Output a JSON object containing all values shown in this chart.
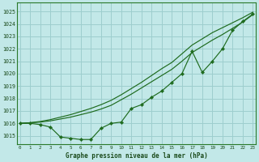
{
  "title": "Graphe pression niveau de la mer (hPa)",
  "bg_color": "#c2e8e8",
  "grid_color": "#9dcece",
  "line_color": "#1e6b1e",
  "xlim": [
    -0.3,
    23.3
  ],
  "ylim": [
    1014.3,
    1025.7
  ],
  "yticks": [
    1015,
    1016,
    1017,
    1018,
    1019,
    1020,
    1021,
    1022,
    1023,
    1024,
    1025
  ],
  "xticks": [
    0,
    1,
    2,
    3,
    4,
    5,
    6,
    7,
    8,
    9,
    10,
    11,
    12,
    13,
    14,
    15,
    16,
    17,
    18,
    19,
    20,
    21,
    22,
    23
  ],
  "series1_x": [
    0,
    1,
    2,
    3,
    4,
    5,
    6,
    7,
    8,
    9,
    10,
    11,
    12,
    13,
    14,
    15,
    16,
    17,
    18,
    19,
    20,
    21,
    22,
    23
  ],
  "series1_y": [
    1016.0,
    1016.0,
    1015.9,
    1015.7,
    1014.9,
    1014.8,
    1014.7,
    1014.7,
    1015.6,
    1016.0,
    1016.1,
    1017.2,
    1017.5,
    1018.1,
    1018.6,
    1019.3,
    1020.0,
    1021.8,
    1020.1,
    1021.0,
    1022.0,
    1023.5,
    1024.2,
    1024.8
  ],
  "series2_x": [
    0,
    1,
    2,
    3,
    4,
    5,
    6,
    7,
    8,
    9,
    10,
    11,
    12,
    13,
    14,
    15,
    16,
    17,
    18,
    19,
    20,
    21,
    22,
    23
  ],
  "series2_y": [
    1016.0,
    1016.05,
    1016.1,
    1016.2,
    1016.35,
    1016.5,
    1016.7,
    1016.9,
    1017.15,
    1017.45,
    1017.9,
    1018.35,
    1018.85,
    1019.35,
    1019.85,
    1020.35,
    1021.0,
    1021.7,
    1022.2,
    1022.7,
    1023.15,
    1023.65,
    1024.15,
    1024.75
  ],
  "series3_x": [
    0,
    1,
    2,
    3,
    4,
    5,
    6,
    7,
    8,
    9,
    10,
    11,
    12,
    13,
    14,
    15,
    16,
    17,
    18,
    19,
    20,
    21,
    22,
    23
  ],
  "series3_y": [
    1016.0,
    1016.05,
    1016.15,
    1016.3,
    1016.5,
    1016.7,
    1016.95,
    1017.2,
    1017.5,
    1017.85,
    1018.3,
    1018.8,
    1019.3,
    1019.85,
    1020.4,
    1020.9,
    1021.6,
    1022.3,
    1022.8,
    1023.3,
    1023.7,
    1024.1,
    1024.5,
    1024.95
  ]
}
